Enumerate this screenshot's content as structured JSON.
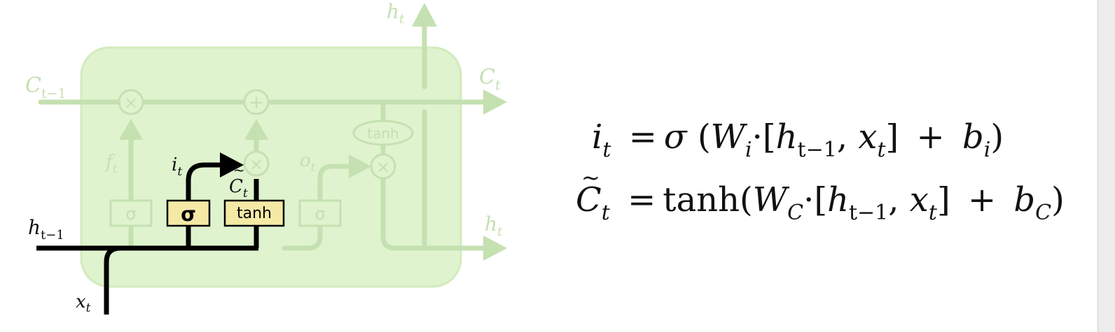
{
  "diagram": {
    "title": "",
    "cell_color": "#dff3ce",
    "faded_color": "#c2dfae",
    "highlight_color": "#000000",
    "gate_fill": "#f4e9a5",
    "labels": {
      "c_prev": "C",
      "c_prev_sub": "t−1",
      "c_out": "C",
      "c_out_sub": "t",
      "h_top": "h",
      "h_top_sub": "t",
      "h_right": "h",
      "h_right_sub": "t",
      "h_prev": "h",
      "h_prev_sub": "t−1",
      "x_in": "x",
      "x_in_sub": "t",
      "f_gate": "f",
      "f_gate_sub": "t",
      "o_gate": "o",
      "o_gate_sub": "t",
      "i_gate": "i",
      "i_gate_sub": "t",
      "c_tilde": "C",
      "c_tilde_sub": "t"
    },
    "gates": {
      "forget": "σ",
      "input": "σ",
      "candidate": "tanh",
      "output": "σ",
      "tanh_oval": "tanh"
    },
    "ops": {
      "multiply": "×",
      "add": "+"
    }
  },
  "equations": {
    "input_gate": {
      "lhs": "i",
      "lhs_sub": "t",
      "equals": "=",
      "func": "σ",
      "open": "(",
      "weight": "W",
      "weight_sub": "i",
      "dot": "·",
      "bracket_open": "[",
      "h": "h",
      "h_sub": "t−1",
      "comma": ",",
      "x": "x",
      "x_sub": "t",
      "bracket_close": "]",
      "plus": "+",
      "bias": "b",
      "bias_sub": "i",
      "close": ")"
    },
    "candidate": {
      "lhs": "C",
      "lhs_sub": "t",
      "equals": "=",
      "func": "tanh",
      "open": "(",
      "weight": "W",
      "weight_sub": "C",
      "dot": "·",
      "bracket_open": "[",
      "h": "h",
      "h_sub": "t−1",
      "comma": ",",
      "x": "x",
      "x_sub": "t",
      "bracket_close": "]",
      "plus": "+",
      "bias": "b",
      "bias_sub": "C",
      "close": ")"
    }
  }
}
